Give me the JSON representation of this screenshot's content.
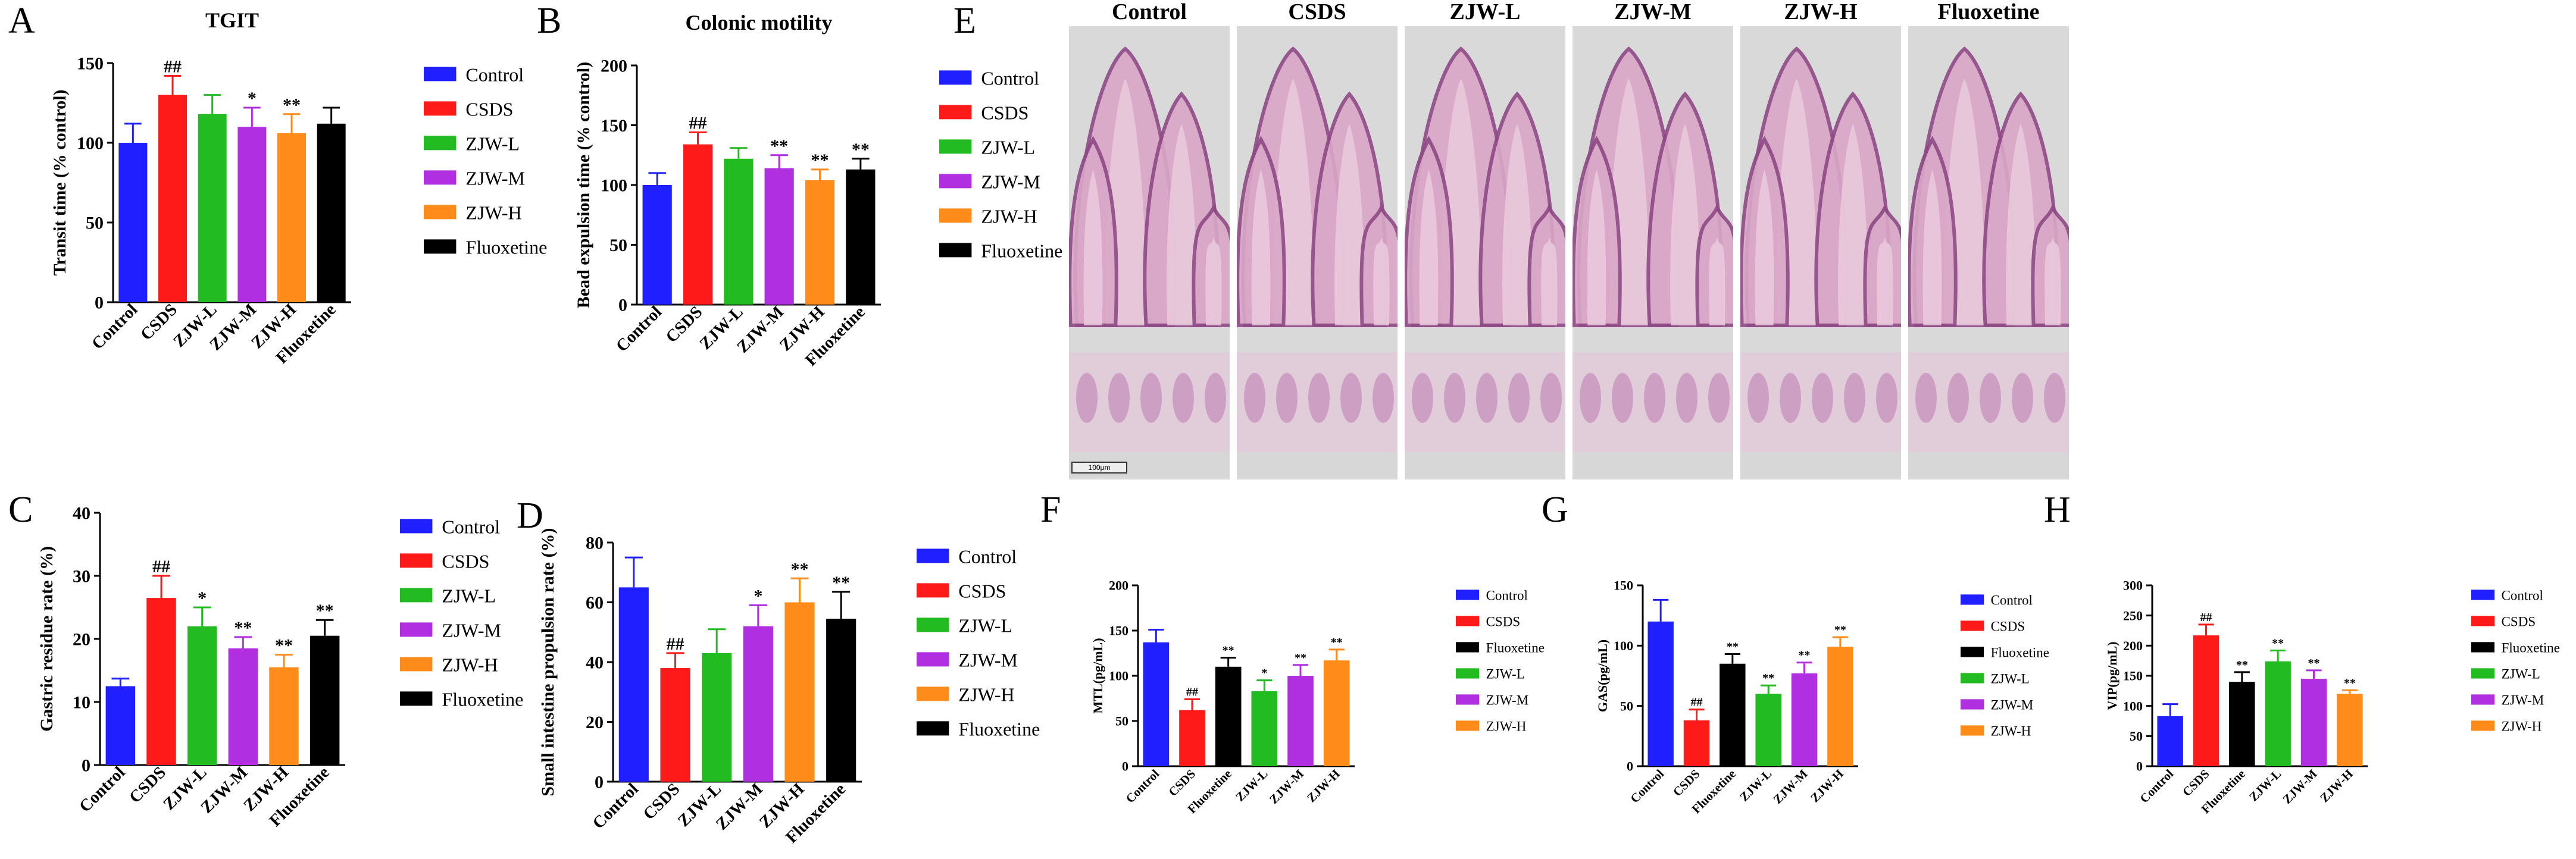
{
  "panels": [
    {
      "letter": "A"
    },
    {
      "letter": "B"
    },
    {
      "letter": "C"
    },
    {
      "letter": "D"
    },
    {
      "letter": "E"
    },
    {
      "letter": "F"
    },
    {
      "letter": "G"
    },
    {
      "letter": "H"
    }
  ],
  "colors": {
    "Control": "#1f1fff",
    "CSDS": "#ff1a1a",
    "ZJW-L": "#22bb22",
    "ZJW-M": "#b02fe0",
    "ZJW-H": "#ff8c1a",
    "Fluoxetine": "#000000"
  },
  "histology": {
    "labels": [
      "Control",
      "CSDS",
      "ZJW-L",
      "ZJW-M",
      "ZJW-H",
      "Fluoxetine"
    ],
    "scale_bar": "100μm"
  },
  "chart_data": [
    {
      "id": "A",
      "type": "bar",
      "title": "TGIT",
      "xlabel": "",
      "ylabel": "Transit time (% control)",
      "ylim": [
        0,
        150
      ],
      "yticks": [
        0,
        50,
        100,
        150
      ],
      "legend": "right",
      "categories": [
        "Control",
        "CSDS",
        "ZJW-L",
        "ZJW-M",
        "ZJW-H",
        "Fluoxetine"
      ],
      "values": [
        100,
        130,
        118,
        110,
        106,
        112
      ],
      "errors": [
        12,
        12,
        12,
        12,
        12,
        10
      ],
      "sig": [
        "",
        "##",
        "",
        "*",
        "**",
        ""
      ]
    },
    {
      "id": "B",
      "type": "bar",
      "title": "Colonic motility",
      "xlabel": "",
      "ylabel": "Bead expulsion time (% control)",
      "ylim": [
        0,
        200
      ],
      "yticks": [
        0,
        50,
        100,
        150,
        200
      ],
      "legend": "right",
      "categories": [
        "Control",
        "CSDS",
        "ZJW-L",
        "ZJW-M",
        "ZJW-H",
        "Fluoxetine"
      ],
      "values": [
        100,
        134,
        122,
        114,
        104,
        113
      ],
      "errors": [
        10,
        10,
        9,
        11,
        9,
        9
      ],
      "sig": [
        "",
        "##",
        "",
        "**",
        "**",
        "**"
      ]
    },
    {
      "id": "C",
      "type": "bar",
      "title": "",
      "xlabel": "",
      "ylabel": "Gastric residue rate (%)",
      "ylim": [
        0,
        40
      ],
      "yticks": [
        0,
        10,
        20,
        30,
        40
      ],
      "legend": "right",
      "categories": [
        "Control",
        "CSDS",
        "ZJW-L",
        "ZJW-M",
        "ZJW-H",
        "Fluoxetine"
      ],
      "values": [
        12.5,
        26.5,
        22,
        18.5,
        15.5,
        20.5
      ],
      "errors": [
        1.2,
        3.5,
        3,
        1.8,
        2,
        2.5
      ],
      "sig": [
        "",
        "##",
        "*",
        "**",
        "**",
        "**"
      ]
    },
    {
      "id": "D",
      "type": "bar",
      "title": "",
      "xlabel": "",
      "ylabel": "Small intestine propulsion rate (%)",
      "ylim": [
        0,
        80
      ],
      "yticks": [
        0,
        20,
        40,
        60,
        80
      ],
      "legend": "right",
      "categories": [
        "Control",
        "CSDS",
        "ZJW-L",
        "ZJW-M",
        "ZJW-H",
        "Fluoxetine"
      ],
      "values": [
        65,
        38,
        43,
        52,
        60,
        54.5
      ],
      "errors": [
        10,
        5,
        8,
        7,
        8,
        9
      ],
      "sig": [
        "",
        "##",
        "",
        "*",
        "**",
        "**"
      ]
    },
    {
      "id": "F",
      "type": "bar",
      "title": "",
      "xlabel": "",
      "ylabel": "MTL(pg/mL)",
      "ylim": [
        0,
        200
      ],
      "yticks": [
        0,
        50,
        100,
        150,
        200
      ],
      "legend": "right",
      "categories": [
        "Control",
        "CSDS",
        "Fluoxetine",
        "ZJW-L",
        "ZJW-M",
        "ZJW-H"
      ],
      "values": [
        137,
        62,
        110,
        83,
        100,
        117
      ],
      "errors": [
        14,
        12,
        10,
        12,
        12,
        12
      ],
      "sig": [
        "",
        "##",
        "**",
        "*",
        "**",
        "**"
      ]
    },
    {
      "id": "G",
      "type": "bar",
      "title": "",
      "xlabel": "",
      "ylabel": "GAS(pg/mL)",
      "ylim": [
        0,
        150
      ],
      "yticks": [
        0,
        50,
        100,
        150
      ],
      "legend": "right",
      "categories": [
        "Control",
        "CSDS",
        "Fluoxetine",
        "ZJW-L",
        "ZJW-M",
        "ZJW-H"
      ],
      "values": [
        120,
        38,
        85,
        60,
        77,
        99
      ],
      "errors": [
        18,
        9,
        8,
        7,
        9,
        8
      ],
      "sig": [
        "",
        "##",
        "**",
        "**",
        "**",
        "**"
      ]
    },
    {
      "id": "H",
      "type": "bar",
      "title": "",
      "xlabel": "",
      "ylabel": "VIP(pg/mL)",
      "ylim": [
        0,
        300
      ],
      "yticks": [
        0,
        50,
        100,
        150,
        200,
        250,
        300
      ],
      "legend": "right",
      "categories": [
        "Control",
        "CSDS",
        "Fluoxetine",
        "ZJW-L",
        "ZJW-M",
        "ZJW-H"
      ],
      "values": [
        83,
        217,
        140,
        174,
        145,
        120
      ],
      "errors": [
        20,
        18,
        16,
        18,
        14,
        6
      ],
      "sig": [
        "",
        "##",
        "**",
        "**",
        "**",
        "**"
      ]
    }
  ]
}
